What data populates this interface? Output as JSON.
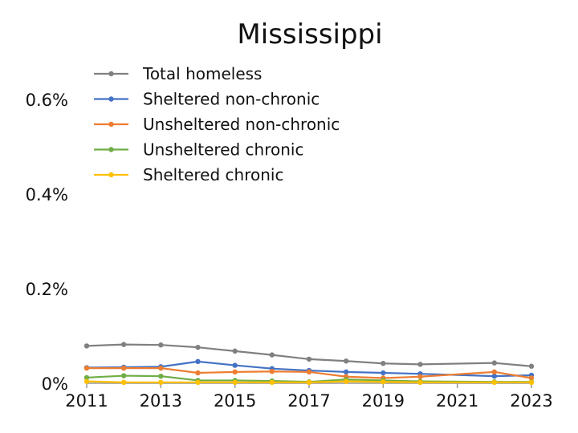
{
  "chart_data": {
    "type": "line",
    "title": "Mississippi",
    "xlabel": "",
    "ylabel": "",
    "x": [
      2011,
      2012,
      2013,
      2014,
      2015,
      2016,
      2017,
      2018,
      2019,
      2020,
      2022,
      2023
    ],
    "xticks": [
      "2011",
      "2013",
      "2015",
      "2017",
      "2019",
      "2021",
      "2023"
    ],
    "xtick_values": [
      2011,
      2013,
      2015,
      2017,
      2019,
      2021,
      2023
    ],
    "yticks": [
      "0%",
      "0.2%",
      "0.4%",
      "0.6%"
    ],
    "ytick_values": [
      0,
      0.2,
      0.4,
      0.6
    ],
    "xlim": [
      2011,
      2023
    ],
    "ylim": [
      0,
      0.6
    ],
    "grid": false,
    "legend_position": "top-left",
    "series": [
      {
        "name": "Total homeless",
        "color": "#808080",
        "values": [
          0.079,
          0.082,
          0.081,
          0.076,
          0.068,
          0.06,
          0.051,
          0.047,
          0.042,
          0.04,
          0.043,
          0.036
        ]
      },
      {
        "name": "Sheltered non-chronic",
        "color": "#4472C4",
        "values": [
          0.033,
          0.034,
          0.035,
          0.046,
          0.038,
          0.031,
          0.027,
          0.024,
          0.022,
          0.02,
          0.015,
          0.017
        ]
      },
      {
        "name": "Unsheltered non-chronic",
        "color": "#ED7D31",
        "values": [
          0.032,
          0.032,
          0.032,
          0.022,
          0.024,
          0.025,
          0.024,
          0.014,
          0.011,
          0.014,
          0.024,
          0.011
        ]
      },
      {
        "name": "Unsheltered chronic",
        "color": "#70AD47",
        "values": [
          0.012,
          0.016,
          0.015,
          0.006,
          0.006,
          0.005,
          0.003,
          0.008,
          0.006,
          0.004,
          0.003,
          0.003
        ]
      },
      {
        "name": "Sheltered chronic",
        "color": "#FFC000",
        "values": [
          0.004,
          0.002,
          0.002,
          0.002,
          0.002,
          0.002,
          0.002,
          0.004,
          0.003,
          0.002,
          0.002,
          0.002
        ]
      }
    ]
  }
}
